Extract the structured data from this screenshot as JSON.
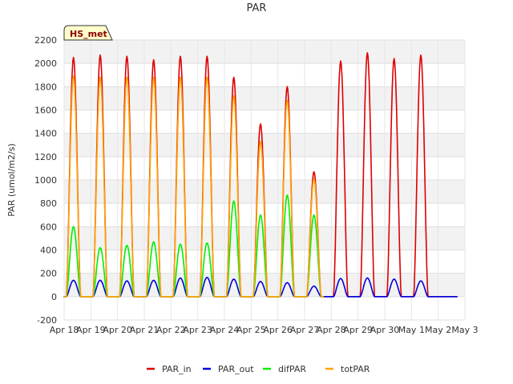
{
  "chart_data": {
    "type": "line",
    "title": "PAR",
    "ylabel": "PAR (umol/m2/s)",
    "xlabel": "",
    "badge": "HS_met",
    "ylim": [
      -200,
      2200
    ],
    "yticks": [
      -200,
      0,
      200,
      400,
      600,
      800,
      1000,
      1200,
      1400,
      1600,
      1800,
      2000,
      2200
    ],
    "xlim": [
      0,
      15
    ],
    "xtick_labels": [
      "Apr 18",
      "Apr 19",
      "Apr 20",
      "Apr 21",
      "Apr 22",
      "Apr 23",
      "Apr 24",
      "Apr 25",
      "Apr 26",
      "Apr 27",
      "Apr 28",
      "Apr 29",
      "Apr 30",
      "May 1",
      "May 2",
      "May 3"
    ],
    "x_unit": "days since Apr 18",
    "legend_position": "bottom",
    "grid": true,
    "series": [
      {
        "name": "PAR_in",
        "color": "#dd0000",
        "x": [
          0.35,
          1.35,
          2.35,
          3.35,
          4.35,
          5.35,
          6.35,
          7.35,
          8.35,
          9.35,
          10.35,
          11.35,
          12.35,
          13.35,
          14.35
        ],
        "y": [
          2050,
          2070,
          2060,
          2030,
          2060,
          2060,
          1880,
          1480,
          1800,
          1070,
          2020,
          2090,
          2040,
          2070,
          0
        ]
      },
      {
        "name": "PAR_out",
        "color": "#0000dd",
        "x": [
          0.35,
          1.35,
          2.35,
          3.35,
          4.35,
          5.35,
          6.35,
          7.35,
          8.35,
          9.35,
          10.35,
          11.35,
          12.35,
          13.35,
          14.35
        ],
        "y": [
          140,
          140,
          135,
          140,
          160,
          165,
          150,
          130,
          120,
          90,
          155,
          160,
          150,
          135,
          0
        ]
      },
      {
        "name": "difPAR",
        "color": "#00ee00",
        "x": [
          0.35,
          1.35,
          2.35,
          3.35,
          4.35,
          5.35,
          6.35,
          7.35,
          8.35,
          9.35
        ],
        "y": [
          600,
          420,
          440,
          470,
          450,
          460,
          820,
          700,
          870,
          700
        ]
      },
      {
        "name": "totPAR",
        "color": "#ffa500",
        "x": [
          0.35,
          1.35,
          2.35,
          3.35,
          4.35,
          5.35,
          6.35,
          7.35,
          8.35,
          9.35
        ],
        "y": [
          1890,
          1880,
          1880,
          1880,
          1880,
          1880,
          1720,
          1330,
          1680,
          1010
        ]
      }
    ]
  }
}
